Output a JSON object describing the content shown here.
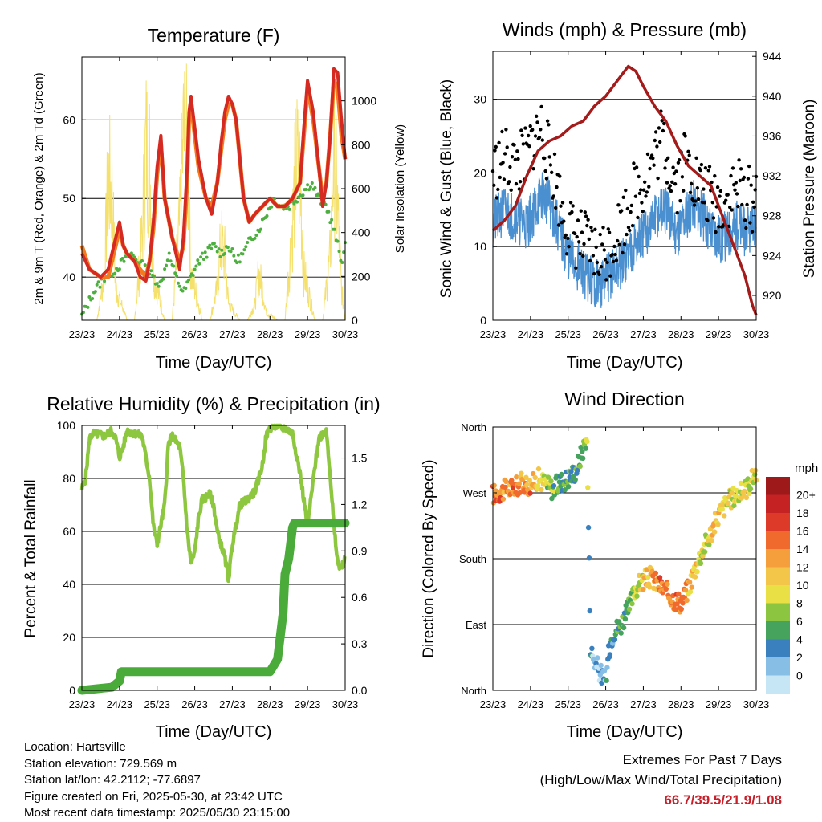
{
  "panels": {
    "temperature": {
      "title": "Temperature (F)",
      "ylabel_left": "2m & 9m T (Red, Orange) & 2m Td (Green)",
      "ylabel_right": "Solar Insolation (Yellow)",
      "xlabel": "Time (Day/UTC)"
    },
    "winds": {
      "title": "Winds (mph) & Pressure (mb)",
      "ylabel_left": "Sonic Wind & Gust (Blue, Black)",
      "ylabel_right": "Station Pressure (Maroon)",
      "xlabel": "Time (Day/UTC)"
    },
    "humidity": {
      "title": "Relative Humidity (%) & Precipitation (in)",
      "ylabel_left": "Percent & Total Rainfall",
      "xlabel": "Time (Day/UTC)"
    },
    "direction": {
      "title": "Wind Direction",
      "ylabel_left": "Direction (Colored By Speed)",
      "xlabel": "Time (Day/UTC)",
      "legend_title": "mph"
    }
  },
  "info": {
    "location": "Location: Hartsville",
    "elevation": "Station elevation: 729.569 m",
    "latlon": "Station lat/lon: 42.2112; -77.6897",
    "created": "Figure created on Fri, 2025-05-30, at 23:42 UTC",
    "recent": "Most recent data timestamp: 2025/05/30 23:15:00"
  },
  "extremes": {
    "title": "Extremes For Past 7 Days",
    "subtitle": "(High/Low/Max Wind/Total Precipitation)",
    "values": "66.7/39.5/21.9/1.08"
  },
  "colors": {
    "temp2m": "#d42a22",
    "temp9m": "#f47a20",
    "dewpoint": "#4daf3f",
    "insolation": "#f4e06a",
    "wind": "#4a8fcf",
    "gust": "#000000",
    "pressure": "#a31b1b",
    "rh": "#8dc63f",
    "precip": "#4aab3b"
  },
  "chart_data": [
    {
      "type": "line",
      "id": "temperature",
      "x_ticks": [
        "23/23",
        "24/23",
        "25/23",
        "26/23",
        "27/23",
        "28/23",
        "29/23",
        "30/23"
      ],
      "x_range_days": [
        0,
        7
      ],
      "y_left_ticks": [
        "40",
        "50",
        "60"
      ],
      "y_left_range": [
        34.5,
        68
      ],
      "y_right_ticks": [
        "0",
        "200",
        "400",
        "600",
        "800",
        "1000"
      ],
      "y_right_range": [
        0,
        1200
      ],
      "series": [
        {
          "key": "t9m",
          "x": [
            0,
            0.2,
            0.5,
            0.7,
            0.85,
            1.0,
            1.1,
            1.2,
            1.4,
            1.55,
            1.7,
            1.8,
            1.9,
            2.0,
            2.1,
            2.2,
            2.4,
            2.6,
            2.7,
            2.8,
            2.85,
            2.9,
            3.1,
            3.3,
            3.45,
            3.6,
            3.7,
            3.8,
            3.9,
            4.0,
            4.1,
            4.2,
            4.3,
            4.45,
            4.6,
            4.8,
            5.0,
            5.2,
            5.4,
            5.6,
            5.8,
            5.9,
            6.0,
            6.15,
            6.3,
            6.4,
            6.5,
            6.6,
            6.7,
            6.8,
            6.9,
            7.0
          ],
          "y": [
            44,
            41,
            40,
            40,
            43,
            46,
            44,
            43,
            42,
            41,
            40,
            42,
            46,
            53,
            57,
            50,
            45,
            42,
            44,
            52,
            60,
            62,
            54,
            50,
            49,
            52,
            56,
            60,
            62,
            62,
            60,
            55,
            50,
            47,
            48,
            49,
            50,
            49,
            49,
            50,
            52,
            58,
            64,
            60,
            54,
            50,
            52,
            58,
            65,
            64,
            58,
            55
          ]
        },
        {
          "key": "t2m",
          "x": [
            0,
            0.2,
            0.5,
            0.7,
            0.85,
            1.0,
            1.1,
            1.2,
            1.4,
            1.55,
            1.7,
            1.8,
            1.9,
            2.0,
            2.1,
            2.2,
            2.4,
            2.6,
            2.7,
            2.8,
            2.85,
            2.9,
            3.1,
            3.3,
            3.45,
            3.6,
            3.7,
            3.8,
            3.9,
            4.0,
            4.1,
            4.2,
            4.3,
            4.45,
            4.6,
            4.8,
            5.0,
            5.2,
            5.4,
            5.6,
            5.8,
            5.9,
            6.0,
            6.15,
            6.3,
            6.4,
            6.5,
            6.6,
            6.7,
            6.8,
            6.9,
            7.0
          ],
          "y": [
            43,
            41,
            40,
            41,
            44,
            47,
            44,
            43,
            42,
            40,
            39.5,
            42,
            47,
            54,
            58,
            50,
            45,
            41,
            45,
            54,
            61,
            63,
            55,
            50,
            48,
            52,
            57,
            61,
            63,
            62,
            60,
            55,
            50,
            47,
            48,
            49,
            50,
            49,
            49,
            50,
            52,
            59,
            65,
            61,
            54,
            49,
            52,
            58,
            66.5,
            66,
            60,
            55
          ]
        },
        {
          "key": "td",
          "x": [
            0,
            0.3,
            0.6,
            0.9,
            1.1,
            1.3,
            1.5,
            1.7,
            1.9,
            2.1,
            2.3,
            2.5,
            2.7,
            2.9,
            3.1,
            3.3,
            3.5,
            3.7,
            3.9,
            4.1,
            4.3,
            4.5,
            4.7,
            4.9,
            5.1,
            5.3,
            5.5,
            5.7,
            5.9,
            6.1,
            6.3,
            6.5,
            6.7,
            6.9,
            7.0
          ],
          "y": [
            35,
            38,
            40,
            41,
            42,
            43,
            42,
            41,
            40,
            39,
            43,
            40,
            38,
            40,
            42,
            43,
            44,
            43,
            44,
            42,
            43,
            45,
            46,
            48,
            50,
            49,
            49,
            50,
            51,
            52,
            50,
            49,
            46,
            42,
            44
          ]
        },
        {
          "key": "insolation",
          "x": [
            0,
            0.4,
            0.6,
            0.7,
            0.8,
            0.9,
            1.2,
            1.4,
            1.6,
            1.7,
            1.8,
            1.9,
            2.2,
            2.4,
            2.6,
            2.7,
            2.8,
            2.9,
            3.2,
            3.4,
            3.6,
            3.7,
            3.8,
            3.9,
            4.2,
            4.4,
            4.6,
            4.7,
            4.8,
            4.9,
            5.2,
            5.4,
            5.6,
            5.7,
            5.8,
            5.9,
            6.2,
            6.4,
            6.6,
            6.7,
            6.8,
            6.9,
            7.0
          ],
          "y": [
            0,
            0,
            300,
            900,
            800,
            200,
            0,
            0,
            500,
            1100,
            1000,
            300,
            0,
            0,
            600,
            1150,
            1050,
            300,
            0,
            0,
            200,
            500,
            400,
            100,
            0,
            0,
            100,
            300,
            200,
            50,
            0,
            0,
            600,
            1000,
            900,
            300,
            0,
            0,
            400,
            1100,
            700,
            200,
            0
          ]
        }
      ]
    },
    {
      "type": "line",
      "id": "winds",
      "x_ticks": [
        "23/23",
        "24/23",
        "25/23",
        "26/23",
        "27/23",
        "28/23",
        "29/23",
        "30/23"
      ],
      "x_range_days": [
        0,
        7
      ],
      "y_left_ticks": [
        "0",
        "10",
        "20",
        "30"
      ],
      "y_left_range": [
        0,
        36.5
      ],
      "y_right_ticks": [
        "920",
        "924",
        "928",
        "932",
        "936",
        "940",
        "944"
      ],
      "y_right_range": [
        917.5,
        944.5
      ],
      "series": [
        {
          "key": "wind",
          "x": [
            0,
            0.3,
            0.6,
            0.9,
            1.1,
            1.3,
            1.5,
            1.7,
            1.9,
            2.1,
            2.3,
            2.5,
            2.7,
            2.9,
            3.1,
            3.3,
            3.5,
            3.7,
            3.9,
            4.1,
            4.3,
            4.5,
            4.7,
            4.9,
            5.1,
            5.3,
            5.5,
            5.7,
            5.9,
            6.1,
            6.3,
            6.5,
            6.7,
            6.9,
            7.0
          ],
          "y": [
            13,
            15,
            14,
            13,
            15,
            17,
            16,
            13,
            10,
            8,
            7,
            6,
            5,
            5,
            6,
            7,
            8,
            10,
            11,
            12,
            14,
            15,
            14,
            12,
            14,
            16,
            15,
            13,
            12,
            11,
            12,
            13,
            12,
            12,
            13
          ]
        },
        {
          "key": "gust",
          "x": [
            0,
            0.3,
            0.6,
            0.9,
            1.1,
            1.3,
            1.5,
            1.7,
            1.9,
            2.1,
            2.3,
            2.5,
            2.7,
            2.9,
            3.1,
            3.3,
            3.5,
            3.7,
            3.9,
            4.1,
            4.3,
            4.5,
            4.7,
            4.9,
            5.1,
            5.3,
            5.5,
            5.7,
            5.9,
            6.1,
            6.3,
            6.5,
            6.7,
            6.9,
            7.0
          ],
          "y": [
            20,
            22,
            21,
            22,
            25,
            26,
            22,
            18,
            14,
            12,
            11,
            10,
            9,
            9,
            10,
            12,
            14,
            17,
            18,
            20,
            22,
            25,
            21,
            19,
            22,
            20,
            18,
            17,
            16,
            16,
            17,
            18,
            17,
            16,
            17
          ]
        },
        {
          "key": "pressure",
          "x": [
            0,
            0.3,
            0.6,
            0.9,
            1.2,
            1.5,
            1.8,
            2.1,
            2.4,
            2.7,
            3.0,
            3.3,
            3.6,
            3.8,
            4.0,
            4.3,
            4.6,
            4.9,
            5.2,
            5.5,
            5.8,
            6.1,
            6.4,
            6.7,
            6.9,
            7.0
          ],
          "y": [
            926.5,
            927.5,
            929,
            932,
            934.5,
            935.5,
            936,
            937,
            937.5,
            939,
            940,
            941.5,
            943,
            942.5,
            941,
            939,
            937.5,
            935,
            933,
            932,
            931,
            928,
            925,
            922,
            919,
            918
          ]
        }
      ]
    },
    {
      "type": "line",
      "id": "humidity",
      "x_ticks": [
        "23/23",
        "24/23",
        "25/23",
        "26/23",
        "27/23",
        "28/23",
        "29/23",
        "30/23"
      ],
      "x_range_days": [
        0,
        7
      ],
      "y_left_ticks": [
        "0",
        "20",
        "40",
        "60",
        "80",
        "100"
      ],
      "y_left_range": [
        0,
        100
      ],
      "y_right_ticks": [
        "0.0",
        "0.3",
        "0.6",
        "0.9",
        "1.2",
        "1.5"
      ],
      "y_right_range": [
        0,
        1.71
      ],
      "series": [
        {
          "key": "rh",
          "x": [
            0,
            0.1,
            0.2,
            0.3,
            0.6,
            0.8,
            0.9,
            1.0,
            1.1,
            1.2,
            1.4,
            1.6,
            1.8,
            1.9,
            2.0,
            2.2,
            2.3,
            2.4,
            2.6,
            2.7,
            2.8,
            2.9,
            3.0,
            3.1,
            3.2,
            3.4,
            3.5,
            3.6,
            3.8,
            3.9,
            4.0,
            4.2,
            4.4,
            4.6,
            4.8,
            4.9,
            5.0,
            5.2,
            5.3,
            5.4,
            5.5,
            5.6,
            5.8,
            6.0,
            6.2,
            6.3,
            6.4,
            6.5,
            6.6,
            6.7,
            6.8,
            6.9,
            7.0
          ],
          "y": [
            76,
            80,
            95,
            97,
            96,
            98,
            95,
            88,
            92,
            98,
            97,
            96,
            80,
            62,
            55,
            70,
            93,
            96,
            92,
            80,
            60,
            48,
            52,
            65,
            72,
            74,
            70,
            60,
            50,
            42,
            55,
            70,
            72,
            75,
            85,
            96,
            99,
            100,
            99,
            99,
            98,
            97,
            82,
            62,
            85,
            95,
            97,
            98,
            82,
            62,
            48,
            46,
            50
          ]
        },
        {
          "key": "precip",
          "x": [
            0,
            0.8,
            1.0,
            1.05,
            5.0,
            5.2,
            5.35,
            5.4,
            5.5,
            5.55,
            5.6,
            5.65,
            7.0
          ],
          "y": [
            0,
            0.02,
            0.06,
            0.12,
            0.12,
            0.2,
            0.5,
            0.75,
            0.85,
            0.95,
            1.05,
            1.08,
            1.08
          ]
        }
      ]
    },
    {
      "type": "scatter",
      "id": "direction",
      "x_ticks": [
        "23/23",
        "24/23",
        "25/23",
        "26/23",
        "27/23",
        "28/23",
        "29/23",
        "30/23"
      ],
      "x_range_days": [
        0,
        7
      ],
      "y_ticks": [
        "North",
        "East",
        "South",
        "West",
        "North"
      ],
      "y_range_deg": [
        0,
        360
      ],
      "legend_labels": [
        "20+",
        "18",
        "16",
        "14",
        "12",
        "10",
        "8",
        "6",
        "4",
        "2",
        "0"
      ],
      "legend_colors": [
        "#9e1a1a",
        "#c52224",
        "#dd3a2a",
        "#ef6a2c",
        "#f59f3c",
        "#f3c64a",
        "#e8e044",
        "#8cc640",
        "#45a35e",
        "#3a80bf",
        "#86bee6",
        "#c6e6f6"
      ],
      "series": [
        {
          "key": "dir",
          "x": [
            0,
            0.2,
            0.4,
            0.6,
            0.8,
            1.0,
            1.2,
            1.4,
            1.6,
            1.8,
            2.0,
            2.2,
            2.4,
            2.5,
            2.6,
            2.7,
            2.8,
            2.9,
            3.0,
            3.1,
            3.2,
            3.4,
            3.6,
            3.8,
            4.0,
            4.2,
            4.4,
            4.6,
            4.8,
            5.0,
            5.2,
            5.4,
            5.6,
            5.8,
            6.0,
            6.2,
            6.4,
            6.6,
            6.8,
            7.0
          ],
          "y": [
            268,
            272,
            275,
            278,
            285,
            280,
            290,
            282,
            275,
            285,
            290,
            300,
            330,
            350,
            55,
            40,
            30,
            20,
            10,
            60,
            80,
            90,
            110,
            140,
            150,
            155,
            145,
            135,
            125,
            120,
            140,
            170,
            195,
            215,
            240,
            255,
            265,
            270,
            280,
            300
          ],
          "speed": [
            16,
            17,
            15,
            16,
            14,
            16,
            12,
            10,
            8,
            7,
            6,
            6,
            8,
            10,
            5,
            4,
            3,
            2,
            4,
            6,
            6,
            8,
            8,
            10,
            12,
            14,
            16,
            16,
            18,
            16,
            14,
            12,
            10,
            12,
            14,
            12,
            10,
            12,
            10,
            12
          ]
        }
      ]
    }
  ]
}
